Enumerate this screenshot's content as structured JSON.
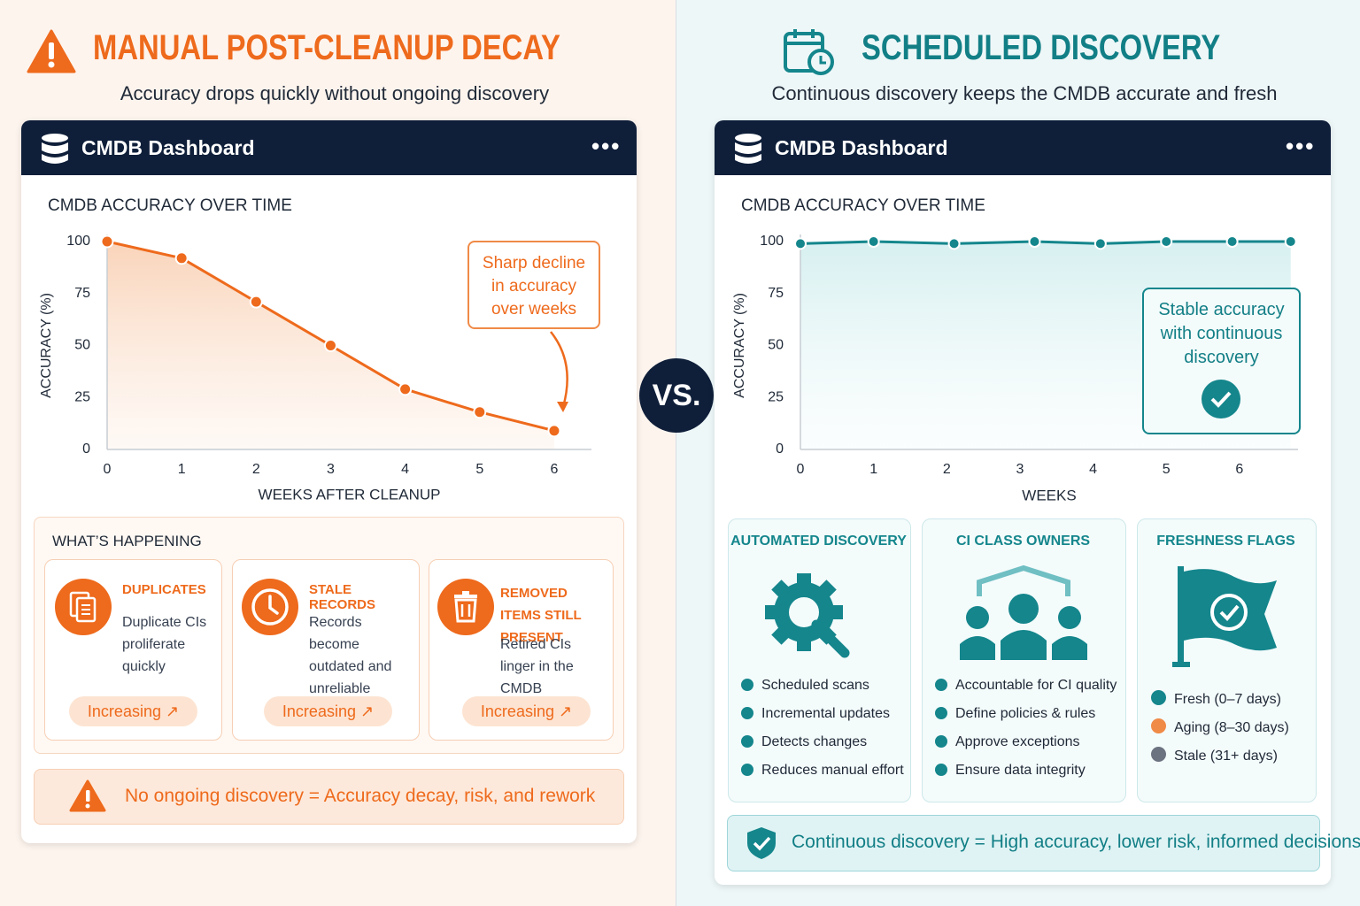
{
  "left": {
    "title": "MANUAL POST-CLEANUP DECAY",
    "subtitle": "Accuracy drops quickly without ongoing discovery",
    "dashboard_title": "CMDB Dashboard",
    "happening": {
      "title": "WHAT’S HAPPENING",
      "cards": [
        {
          "title": "DUPLICATES",
          "text": "Duplicate CIs proliferate quickly",
          "status": "Increasing"
        },
        {
          "title": "STALE RECORDS",
          "text": "Records become outdated and unreliable",
          "status": "Increasing"
        },
        {
          "title": "REMOVED ITEMS STILL PRESENT",
          "text": "Retired CIs linger in the CMDB",
          "status": "Increasing"
        }
      ]
    },
    "footer": "No ongoing discovery = Accuracy decay, risk, and rework"
  },
  "vs": "VS.",
  "right": {
    "title": "SCHEDULED DISCOVERY",
    "subtitle": "Continuous discovery keeps the CMDB accurate and fresh",
    "dashboard_title": "CMDB Dashboard",
    "features": [
      {
        "title": "AUTOMATED DISCOVERY",
        "items": [
          "Scheduled scans",
          "Incremental updates",
          "Detects changes",
          "Reduces manual effort"
        ]
      },
      {
        "title": "CI CLASS OWNERS",
        "items": [
          "Accountable for CI quality",
          "Define policies & rules",
          "Approve exceptions",
          "Ensure data integrity"
        ]
      }
    ],
    "freshness": {
      "title": "FRESHNESS FLAGS",
      "legend": [
        "Fresh (0–7 days)",
        "Aging (8–30 days)",
        "Stale (31+ days)"
      ]
    },
    "footer": "Continuous discovery = High accuracy, lower risk, informed decisions"
  },
  "chart_data": [
    {
      "type": "line",
      "title": "CMDB ACCURACY OVER TIME",
      "xlabel": "WEEKS AFTER CLEANUP",
      "ylabel": "ACCURACY (%)",
      "annotation": "Sharp decline in accuracy over weeks",
      "x": [
        0,
        1,
        2,
        3,
        4,
        5,
        6
      ],
      "values": [
        100,
        92,
        71,
        50,
        29,
        18,
        9
      ],
      "color": "#ee6a1c",
      "xlim": [
        0,
        6.5
      ],
      "ylim": [
        0,
        100
      ],
      "xticks": [
        0,
        1,
        2,
        3,
        4,
        5,
        6
      ],
      "yticks": [
        0,
        25,
        50,
        75,
        100
      ],
      "grid": false
    },
    {
      "type": "line",
      "title": "CMDB ACCURACY OVER TIME",
      "xlabel": "WEEKS",
      "ylabel": "ACCURACY (%)",
      "annotation": "Stable accuracy with continuous discovery",
      "x": [
        0,
        1,
        2.1,
        3.2,
        4.1,
        5,
        5.9,
        6.7
      ],
      "values": [
        99,
        100,
        99,
        100,
        99,
        100,
        100,
        100
      ],
      "color": "#14868c",
      "xlim": [
        0,
        6.8
      ],
      "ylim": [
        0,
        100
      ],
      "xticks": [
        0,
        1,
        2,
        3,
        4,
        5,
        6
      ],
      "yticks": [
        0,
        25,
        50,
        75,
        100
      ],
      "grid": false
    }
  ]
}
